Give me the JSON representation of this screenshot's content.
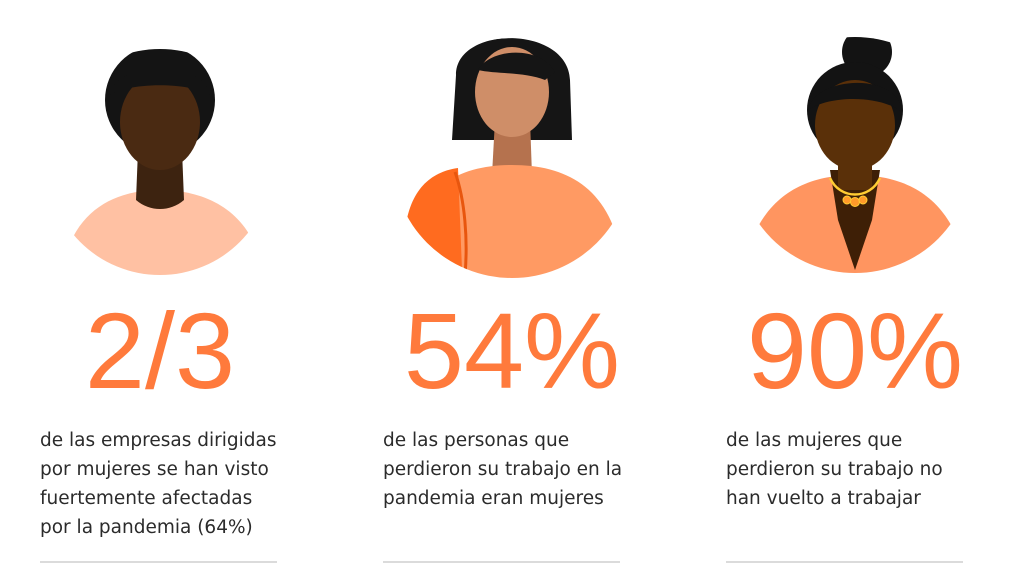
{
  "items": [
    {
      "stat": "2/3",
      "lines": [
        "de las empresas dirigidas",
        "por mujeres se han visto",
        "fuertemente afectadas",
        "por la pandemia (64%)"
      ]
    },
    {
      "stat": "54%",
      "lines": [
        "de las personas que",
        "perdieron su trabajo en la",
        "pandemia eran mujeres"
      ]
    },
    {
      "stat": "90%",
      "lines": [
        "de las mujeres que",
        "perdieron su trabajo no",
        "han vuelto a trabajar"
      ]
    }
  ]
}
